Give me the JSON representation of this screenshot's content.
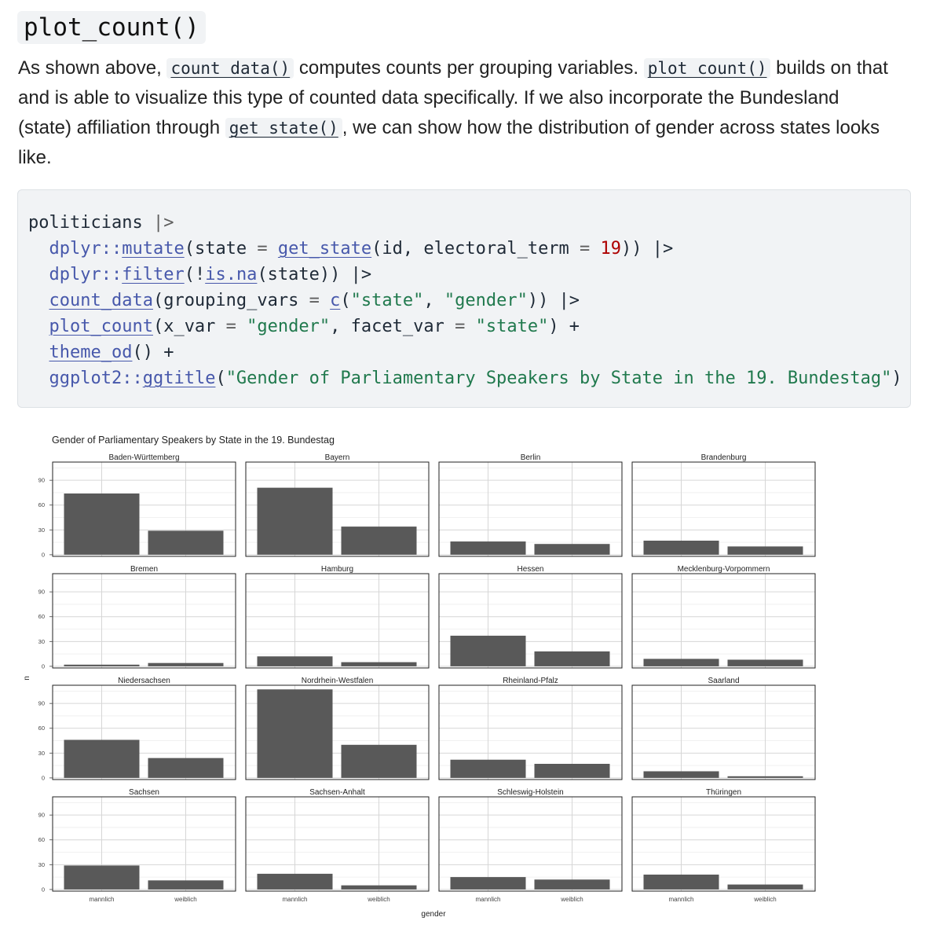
{
  "heading": "plot_count()",
  "paragraph": {
    "t1": "As shown above, ",
    "c1": "count_data()",
    "t2": " computes counts per grouping variables. ",
    "c2": "plot_count()",
    "t3": " builds on that and is able to visualize this type of counted data specifically. If we also incorporate the Bundesland (state) affiliation through ",
    "c3": "get_state()",
    "t4": ", we can show how the distribution of gender across states looks like."
  },
  "code": {
    "l1": {
      "a": "politicians",
      "b": " |>"
    },
    "l2": {
      "a": "  ",
      "ns": "dplyr::",
      "fn": "mutate",
      "b": "(state ",
      "op": "=",
      "c": " ",
      "fn2": "get_state",
      "d": "(id, electoral_term ",
      "op2": "=",
      "e": " ",
      "num": "19",
      "f": ")) |>"
    },
    "l3": {
      "a": "  ",
      "ns": "dplyr::",
      "fn": "filter",
      "b": "(!",
      "fn2": "is.na",
      "c": "(state)) |>"
    },
    "l4": {
      "a": "  ",
      "fn": "count_data",
      "b": "(grouping_vars ",
      "op": "=",
      "c": " ",
      "fn2": "c",
      "d": "(",
      "s1": "\"state\"",
      "e": ", ",
      "s2": "\"gender\"",
      "f": ")) |>"
    },
    "l5": {
      "a": "  ",
      "fn": "plot_count",
      "b": "(x_var ",
      "op": "=",
      "c": " ",
      "s1": "\"gender\"",
      "d": ", facet_var ",
      "op2": "=",
      "e": " ",
      "s2": "\"state\"",
      "f": ") +"
    },
    "l6": {
      "a": "  ",
      "fn": "theme_od",
      "b": "() +"
    },
    "l7": {
      "a": "  ",
      "ns": "ggplot2::",
      "fn": "ggtitle",
      "b": "(",
      "s1": "\"Gender of Parliamentary Speakers by State in the 19. Bundestag\"",
      "c": ")"
    }
  },
  "chart_data": {
    "type": "bar",
    "title": "Gender of Parliamentary Speakers by State in the 19. Bundestag",
    "xlabel": "gender",
    "ylabel": "n",
    "categories": [
      "männlich",
      "weiblich"
    ],
    "tick_labels": [
      "mannlich",
      "weiblich"
    ],
    "ylim": [
      -2,
      112
    ],
    "yticks": [
      0,
      30,
      60,
      90
    ],
    "grid": true,
    "bar_color": "#595959",
    "facets": [
      {
        "name": "Baden-Württemberg",
        "values": [
          74,
          29
        ]
      },
      {
        "name": "Bayern",
        "values": [
          81,
          34
        ]
      },
      {
        "name": "Berlin",
        "values": [
          16,
          13
        ]
      },
      {
        "name": "Brandenburg",
        "values": [
          17,
          10
        ]
      },
      {
        "name": "Bremen",
        "values": [
          2,
          4
        ]
      },
      {
        "name": "Hamburg",
        "values": [
          12,
          5
        ]
      },
      {
        "name": "Hessen",
        "values": [
          37,
          18
        ]
      },
      {
        "name": "Mecklenburg-Vorpommern",
        "values": [
          9,
          8
        ]
      },
      {
        "name": "Niedersachsen",
        "values": [
          46,
          24
        ]
      },
      {
        "name": "Nordrhein-Westfalen",
        "values": [
          107,
          40
        ]
      },
      {
        "name": "Rheinland-Pfalz",
        "values": [
          22,
          17
        ]
      },
      {
        "name": "Saarland",
        "values": [
          8,
          2
        ]
      },
      {
        "name": "Sachsen",
        "values": [
          29,
          11
        ]
      },
      {
        "name": "Sachsen-Anhalt",
        "values": [
          19,
          5
        ]
      },
      {
        "name": "Schleswig-Holstein",
        "values": [
          15,
          12
        ]
      },
      {
        "name": "Thüringen",
        "values": [
          18,
          6
        ]
      }
    ]
  }
}
